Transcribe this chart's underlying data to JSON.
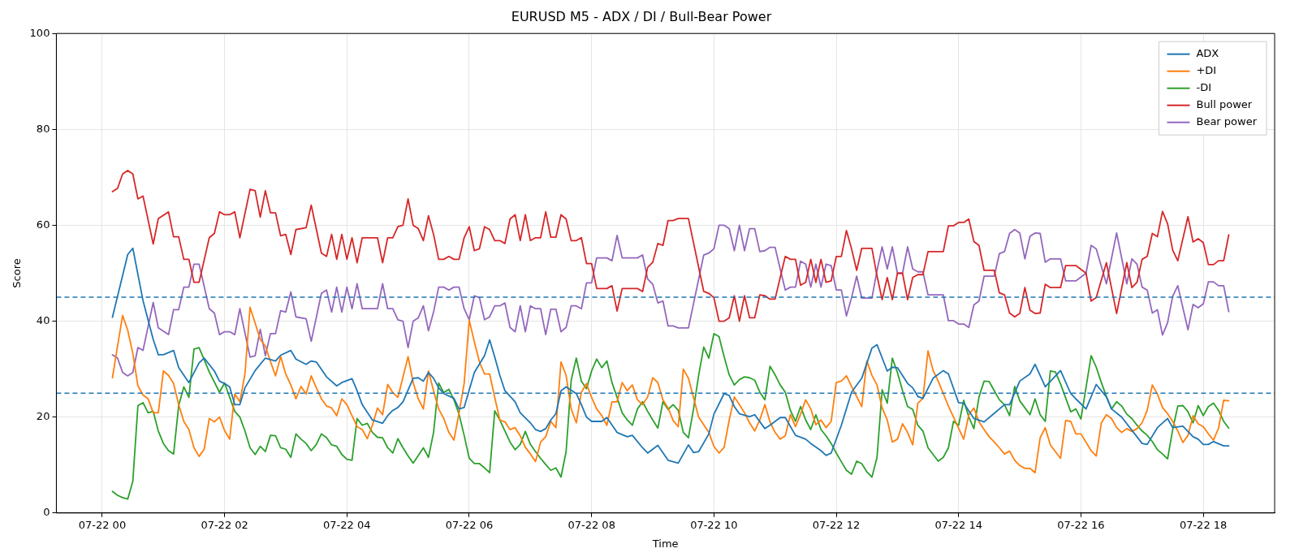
{
  "chart_data": {
    "type": "line",
    "title": "EURUSD M5 - ADX / DI / Bull-Bear Power",
    "xlabel": "Time",
    "ylabel": "Score",
    "xlim": [
      "--07-21T23:15",
      "--07-22T19:10"
    ],
    "ylim": [
      0,
      100
    ],
    "xticks": [
      {
        "value": "--07-22T00:00",
        "label": "07-22 00"
      },
      {
        "value": "--07-22T02:00",
        "label": "07-22 02"
      },
      {
        "value": "--07-22T04:00",
        "label": "07-22 04"
      },
      {
        "value": "--07-22T06:00",
        "label": "07-22 06"
      },
      {
        "value": "--07-22T08:00",
        "label": "07-22 08"
      },
      {
        "value": "--07-22T10:00",
        "label": "07-22 10"
      },
      {
        "value": "--07-22T12:00",
        "label": "07-22 12"
      },
      {
        "value": "--07-22T14:00",
        "label": "07-22 14"
      },
      {
        "value": "--07-22T16:00",
        "label": "07-22 16"
      },
      {
        "value": "--07-22T18:00",
        "label": "07-22 18"
      }
    ],
    "yticks": [
      0,
      20,
      40,
      60,
      80,
      100
    ],
    "grid": true,
    "legend": "top right",
    "marker": "none",
    "line_style": "solid",
    "ref_lines": [
      {
        "axis": "y",
        "value": 45,
        "color": "#1f77b4",
        "line_style": "dashed"
      },
      {
        "axis": "y",
        "value": 25,
        "color": "#1f77b4",
        "line_style": "dashed"
      }
    ],
    "x": [
      "--07-22T00:10",
      "--07-22T00:15",
      "--07-22T00:20",
      "--07-22T00:25",
      "--07-22T00:30",
      "--07-22T00:35",
      "--07-22T00:40",
      "--07-22T00:50",
      "--07-22T00:55",
      "--07-22T01:05",
      "--07-22T01:10",
      "--07-22T01:15",
      "--07-22T01:20",
      "--07-22T01:25",
      "--07-22T01:30",
      "--07-22T01:35",
      "--07-22T01:45",
      "--07-22T01:50",
      "--07-22T01:55",
      "--07-22T02:00",
      "--07-22T02:05",
      "--07-22T02:10",
      "--07-22T02:15",
      "--07-22T02:25",
      "--07-22T02:30",
      "--07-22T02:35",
      "--07-22T02:40",
      "--07-22T02:45",
      "--07-22T02:50",
      "--07-22T02:55",
      "--07-22T03:00",
      "--07-22T03:05",
      "--07-22T03:10",
      "--07-22T03:20",
      "--07-22T03:25",
      "--07-22T03:35",
      "--07-22T03:40",
      "--07-22T03:45",
      "--07-22T03:50",
      "--07-22T03:55",
      "--07-22T04:00",
      "--07-22T04:05",
      "--07-22T04:10",
      "--07-22T04:15",
      "--07-22T04:30",
      "--07-22T04:35",
      "--07-22T04:40",
      "--07-22T04:45",
      "--07-22T04:50",
      "--07-22T04:55",
      "--07-22T05:00",
      "--07-22T05:05",
      "--07-22T05:10",
      "--07-22T05:15",
      "--07-22T05:20",
      "--07-22T05:25",
      "--07-22T05:30",
      "--07-22T05:35",
      "--07-22T05:40",
      "--07-22T05:45",
      "--07-22T05:50",
      "--07-22T05:55",
      "--07-22T06:00",
      "--07-22T06:05",
      "--07-22T06:10",
      "--07-22T06:15",
      "--07-22T06:20",
      "--07-22T06:25",
      "--07-22T06:30",
      "--07-22T06:35",
      "--07-22T06:40",
      "--07-22T06:45",
      "--07-22T06:50",
      "--07-22T06:55",
      "--07-22T07:00",
      "--07-22T07:05",
      "--07-22T07:10",
      "--07-22T07:15",
      "--07-22T07:20",
      "--07-22T07:25",
      "--07-22T07:30",
      "--07-22T07:35",
      "--07-22T07:40",
      "--07-22T07:45",
      "--07-22T07:50",
      "--07-22T07:55",
      "--07-22T08:00",
      "--07-22T08:05",
      "--07-22T08:15",
      "--07-22T08:20",
      "--07-22T08:25",
      "--07-22T08:30",
      "--07-22T08:45",
      "--07-22T08:50",
      "--07-22T08:55",
      "--07-22T09:00",
      "--07-22T09:05",
      "--07-22T09:10",
      "--07-22T09:15",
      "--07-22T09:20",
      "--07-22T09:25",
      "--07-22T09:35",
      "--07-22T09:50",
      "--07-22T09:55",
      "--07-22T10:00",
      "--07-22T10:05",
      "--07-22T10:10",
      "--07-22T10:15",
      "--07-22T10:20",
      "--07-22T10:25",
      "--07-22T10:30",
      "--07-22T10:35",
      "--07-22T10:40",
      "--07-22T10:45",
      "--07-22T10:50",
      "--07-22T10:55",
      "--07-22T11:00",
      "--07-22T11:05",
      "--07-22T11:10",
      "--07-22T11:15",
      "--07-22T11:20",
      "--07-22T11:25",
      "--07-22T11:30",
      "--07-22T11:35",
      "--07-22T11:40",
      "--07-22T11:45",
      "--07-22T11:50",
      "--07-22T11:55",
      "--07-22T12:00",
      "--07-22T12:05",
      "--07-22T12:10",
      "--07-22T12:15",
      "--07-22T12:20",
      "--07-22T12:25",
      "--07-22T12:35",
      "--07-22T12:40",
      "--07-22T12:45",
      "--07-22T12:50",
      "--07-22T12:55",
      "--07-22T13:00",
      "--07-22T13:05",
      "--07-22T13:10",
      "--07-22T13:15",
      "--07-22T13:20",
      "--07-22T13:25",
      "--07-22T13:30",
      "--07-22T13:45",
      "--07-22T13:50",
      "--07-22T13:55",
      "--07-22T14:00",
      "--07-22T14:05",
      "--07-22T14:10",
      "--07-22T14:15",
      "--07-22T14:20",
      "--07-22T14:25",
      "--07-22T14:35",
      "--07-22T14:40",
      "--07-22T14:45",
      "--07-22T14:50",
      "--07-22T14:55",
      "--07-22T15:00",
      "--07-22T15:05",
      "--07-22T15:10",
      "--07-22T15:15",
      "--07-22T15:20",
      "--07-22T15:25",
      "--07-22T15:30",
      "--07-22T15:40",
      "--07-22T15:45",
      "--07-22T15:55",
      "--07-22T16:05",
      "--07-22T16:10",
      "--07-22T16:15",
      "--07-22T16:25",
      "--07-22T16:35",
      "--07-22T16:45",
      "--07-22T16:50",
      "--07-22T16:55",
      "--07-22T17:00",
      "--07-22T17:05",
      "--07-22T17:10",
      "--07-22T17:15",
      "--07-22T17:20",
      "--07-22T17:25",
      "--07-22T17:30",
      "--07-22T17:35",
      "--07-22T17:45",
      "--07-22T17:50",
      "--07-22T17:55",
      "--07-22T18:00",
      "--07-22T18:05",
      "--07-22T18:10",
      "--07-22T18:15",
      "--07-22T18:20",
      "--07-22T18:25"
    ],
    "series": [
      {
        "name": "ADX",
        "color": "#1f77b4",
        "x": [
          "--07-22T00:10",
          "--07-22T00:25",
          "--07-22T00:30",
          "--07-22T00:40",
          "--07-22T00:50",
          "--07-22T00:55",
          "--07-22T01:00",
          "--07-22T01:10",
          "--07-22T01:15",
          "--07-22T01:25",
          "--07-22T01:35",
          "--07-22T01:40",
          "--07-22T01:50",
          "--07-22T01:55",
          "--07-22T02:00",
          "--07-22T02:05",
          "--07-22T02:10",
          "--07-22T02:15",
          "--07-22T02:20",
          "--07-22T02:30",
          "--07-22T02:40",
          "--07-22T02:50",
          "--07-22T02:55",
          "--07-22T03:05",
          "--07-22T03:10",
          "--07-22T03:20",
          "--07-22T03:25",
          "--07-22T03:30",
          "--07-22T03:40",
          "--07-22T03:50",
          "--07-22T03:55",
          "--07-22T04:05",
          "--07-22T04:10",
          "--07-22T04:15",
          "--07-22T04:25",
          "--07-22T04:35",
          "--07-22T04:40",
          "--07-22T04:45",
          "--07-22T04:50",
          "--07-22T04:55",
          "--07-22T05:05",
          "--07-22T05:10",
          "--07-22T05:15",
          "--07-22T05:20",
          "--07-22T05:25",
          "--07-22T05:30",
          "--07-22T05:35",
          "--07-22T05:45",
          "--07-22T05:50",
          "--07-22T05:55",
          "--07-22T06:05",
          "--07-22T06:15",
          "--07-22T06:20",
          "--07-22T06:25",
          "--07-22T06:30",
          "--07-22T06:35",
          "--07-22T06:45",
          "--07-22T06:50",
          "--07-22T07:00",
          "--07-22T07:05",
          "--07-22T07:10",
          "--07-22T07:15",
          "--07-22T07:20",
          "--07-22T07:25",
          "--07-22T07:30",
          "--07-22T07:35",
          "--07-22T07:45",
          "--07-22T07:50",
          "--07-22T07:55",
          "--07-22T08:00",
          "--07-22T08:10",
          "--07-22T08:15",
          "--07-22T08:25",
          "--07-22T08:35",
          "--07-22T08:40",
          "--07-22T08:50",
          "--07-22T08:55",
          "--07-22T09:05",
          "--07-22T09:15",
          "--07-22T09:25",
          "--07-22T09:35",
          "--07-22T09:40",
          "--07-22T09:45",
          "--07-22T09:55",
          "--07-22T10:00",
          "--07-22T10:10",
          "--07-22T10:15",
          "--07-22T10:20",
          "--07-22T10:25",
          "--07-22T10:35",
          "--07-22T10:40",
          "--07-22T10:50",
          "--07-22T10:55",
          "--07-22T11:05",
          "--07-22T11:10",
          "--07-22T11:20",
          "--07-22T11:30",
          "--07-22T11:35",
          "--07-22T11:45",
          "--07-22T11:50",
          "--07-22T11:55",
          "--07-22T12:05",
          "--07-22T12:15",
          "--07-22T12:25",
          "--07-22T12:35",
          "--07-22T12:40",
          "--07-22T12:50",
          "--07-22T12:55",
          "--07-22T13:00",
          "--07-22T13:10",
          "--07-22T13:15",
          "--07-22T13:20",
          "--07-22T13:25",
          "--07-22T13:35",
          "--07-22T13:45",
          "--07-22T13:50",
          "--07-22T14:00",
          "--07-22T14:05",
          "--07-22T14:15",
          "--07-22T14:25",
          "--07-22T14:35",
          "--07-22T14:45",
          "--07-22T14:50",
          "--07-22T15:00",
          "--07-22T15:10",
          "--07-22T15:15",
          "--07-22T15:25",
          "--07-22T15:40",
          "--07-22T15:50",
          "--07-22T15:55",
          "--07-22T16:05",
          "--07-22T16:15",
          "--07-22T16:25",
          "--07-22T16:30",
          "--07-22T16:40",
          "--07-22T17:00",
          "--07-22T17:05",
          "--07-22T17:15",
          "--07-22T17:25",
          "--07-22T17:30",
          "--07-22T17:40",
          "--07-22T17:50",
          "--07-22T17:55",
          "--07-22T18:00",
          "--07-22T18:05",
          "--07-22T18:10",
          "--07-22T18:20",
          "--07-22T18:25"
        ],
        "values": [
          40.8,
          53.9,
          55.2,
          44.3,
          36.2,
          33.0,
          33.0,
          33.9,
          30.3,
          27.2,
          31.3,
          32.3,
          29.6,
          27.5,
          27.0,
          26.3,
          22.6,
          22.6,
          26.1,
          29.7,
          32.3,
          31.7,
          32.9,
          33.9,
          32.1,
          31.0,
          31.7,
          31.5,
          28.4,
          26.5,
          27.2,
          28.0,
          25.5,
          22.6,
          19.4,
          18.7,
          20.3,
          21.4,
          22.0,
          23.2,
          28.1,
          28.2,
          27.5,
          29.3,
          28.1,
          26.1,
          24.9,
          23.9,
          21.7,
          22.0,
          29.3,
          32.8,
          36.1,
          32.5,
          28.7,
          25.5,
          23.2,
          20.9,
          18.8,
          17.4,
          17.0,
          17.6,
          19.4,
          20.7,
          25.5,
          26.3,
          24.9,
          22.6,
          20.0,
          19.1,
          19.1,
          19.9,
          16.8,
          15.9,
          16.2,
          13.6,
          12.5,
          14.1,
          11.0,
          10.4,
          14.2,
          12.6,
          12.8,
          16.5,
          20.6,
          24.9,
          24.5,
          22.2,
          20.7,
          20.1,
          20.5,
          17.6,
          18.3,
          19.9,
          19.9,
          16.2,
          15.4,
          14.5,
          13.0,
          12.0,
          12.5,
          18.3,
          25.2,
          28.1,
          34.4,
          35.1,
          29.6,
          30.4,
          30.3,
          27.0,
          26.1,
          24.3,
          23.9,
          28.1,
          29.7,
          29.0,
          23.0,
          22.9,
          19.7,
          19.0,
          20.8,
          22.6,
          22.6,
          27.5,
          29.0,
          31.0,
          26.3,
          29.7,
          24.9,
          23.8,
          21.7,
          26.8,
          24.2,
          21.7,
          20.0,
          14.5,
          14.3,
          17.8,
          19.7,
          17.8,
          18.1,
          15.9,
          15.4,
          14.3,
          14.3,
          14.9,
          14.0,
          14.0
        ]
      },
      {
        "name": "+DI",
        "color": "#ff7f0e",
        "x": [
          "--07-22T00:10",
          "--07-22T00:15",
          "--07-22T00:20",
          "--07-22T00:25",
          "--07-22T00:30",
          "--07-22T00:35",
          "--07-22T00:40",
          "--07-22T00:45",
          "--07-22T00:50",
          "--07-22T00:55",
          "--07-22T01:00",
          "--07-22T01:05",
          "--07-22T01:10",
          "--07-22T01:15",
          "--07-22T01:20",
          "--07-22T01:25",
          "--07-22T01:30",
          "--07-22T01:35",
          "--07-22T01:40",
          "--07-22T01:45",
          "--07-22T01:50",
          "--07-22T01:55",
          "--07-22T02:00",
          "--07-22T02:05",
          "--07-22T02:10",
          "--07-22T02:15",
          "--07-22T02:20",
          "--07-22T02:25",
          "--07-22T02:30",
          "--07-22T02:35",
          "--07-22T02:40",
          "--07-22T02:45",
          "--07-22T02:50",
          "--07-22T02:55",
          "--07-22T03:00",
          "--07-22T03:05",
          "--07-22T03:10",
          "--07-22T03:15",
          "--07-22T03:20",
          "--07-22T03:25",
          "--07-22T03:30",
          "--07-22T03:35",
          "--07-22T03:40",
          "--07-22T03:45",
          "--07-22T03:50",
          "--07-22T03:55",
          "--07-22T04:00",
          "--07-22T04:05",
          "--07-22T04:10",
          "--07-22T04:15",
          "--07-22T04:20",
          "--07-22T04:25",
          "--07-22T04:30",
          "--07-22T04:35",
          "--07-22T04:40",
          "--07-22T04:45",
          "--07-22T04:50",
          "--07-22T05:00",
          "--07-22T05:05",
          "--07-22T05:10",
          "--07-22T05:15",
          "--07-22T05:20",
          "--07-22T05:25",
          "--07-22T05:30",
          "--07-22T05:35",
          "--07-22T05:40",
          "--07-22T05:45",
          "--07-22T05:50",
          "--07-22T05:55",
          "--07-22T06:00",
          "--07-22T06:05",
          "--07-22T06:10",
          "--07-22T06:15",
          "--07-22T06:20",
          "--07-22T06:25",
          "--07-22T06:30",
          "--07-22T06:35",
          "--07-22T06:40",
          "--07-22T06:45",
          "--07-22T06:50",
          "--07-22T06:55",
          "--07-22T07:00",
          "--07-22T07:05",
          "--07-22T07:10",
          "--07-22T07:15",
          "--07-22T07:20",
          "--07-22T07:25",
          "--07-22T07:30",
          "--07-22T07:35",
          "--07-22T07:40",
          "--07-22T07:45",
          "--07-22T07:50",
          "--07-22T07:55",
          "--07-22T08:00",
          "--07-22T08:05",
          "--07-22T08:10",
          "--07-22T08:15",
          "--07-22T08:20",
          "--07-22T08:25",
          "--07-22T08:30",
          "--07-22T08:35",
          "--07-22T08:40",
          "--07-22T08:45",
          "--07-22T08:50",
          "--07-22T08:55",
          "--07-22T09:00",
          "--07-22T09:05",
          "--07-22T09:10",
          "--07-22T09:15",
          "--07-22T09:20",
          "--07-22T09:25",
          "--07-22T09:30",
          "--07-22T09:35",
          "--07-22T09:45",
          "--07-22T09:55",
          "--07-22T10:00",
          "--07-22T10:05",
          "--07-22T10:10",
          "--07-22T10:15",
          "--07-22T10:20",
          "--07-22T10:25",
          "--07-22T10:30",
          "--07-22T10:35",
          "--07-22T10:40",
          "--07-22T10:45",
          "--07-22T10:50",
          "--07-22T10:55",
          "--07-22T11:00",
          "--07-22T11:05",
          "--07-22T11:10",
          "--07-22T11:15",
          "--07-22T11:20",
          "--07-22T11:25",
          "--07-22T11:30",
          "--07-22T11:35",
          "--07-22T11:40",
          "--07-22T11:45",
          "--07-22T11:50",
          "--07-22T11:55",
          "--07-22T12:00",
          "--07-22T12:05",
          "--07-22T12:10",
          "--07-22T12:15",
          "--07-22T12:20",
          "--07-22T12:25",
          "--07-22T12:30",
          "--07-22T12:35",
          "--07-22T12:40",
          "--07-22T12:45",
          "--07-22T12:50",
          "--07-22T12:55",
          "--07-22T13:00",
          "--07-22T13:05",
          "--07-22T13:10",
          "--07-22T13:15",
          "--07-22T13:20",
          "--07-22T13:25",
          "--07-22T13:30",
          "--07-22T13:35",
          "--07-22T13:40",
          "--07-22T13:45",
          "--07-22T13:50",
          "--07-22T13:55",
          "--07-22T14:00",
          "--07-22T14:05",
          "--07-22T14:10",
          "--07-22T14:15",
          "--07-22T14:20",
          "--07-22T14:25",
          "--07-22T14:30",
          "--07-22T14:35",
          "--07-22T14:40",
          "--07-22T14:45",
          "--07-22T14:50",
          "--07-22T14:55",
          "--07-22T15:00",
          "--07-22T15:05",
          "--07-22T15:10",
          "--07-22T15:15",
          "--07-22T15:20",
          "--07-22T15:25",
          "--07-22T15:30",
          "--07-22T15:40",
          "--07-22T15:45",
          "--07-22T15:50",
          "--07-22T15:55",
          "--07-22T16:00",
          "--07-22T16:10",
          "--07-22T16:15",
          "--07-22T16:20",
          "--07-22T16:25",
          "--07-22T16:30",
          "--07-22T16:35",
          "--07-22T16:40",
          "--07-22T16:45",
          "--07-22T16:50",
          "--07-22T16:55",
          "--07-22T17:00",
          "--07-22T17:05",
          "--07-22T17:10",
          "--07-22T17:15",
          "--07-22T17:20",
          "--07-22T17:25",
          "--07-22T17:30",
          "--07-22T17:35",
          "--07-22T17:40",
          "--07-22T17:45",
          "--07-22T17:50",
          "--07-22T17:55",
          "--07-22T18:00",
          "--07-22T18:05",
          "--07-22T18:10",
          "--07-22T18:15",
          "--07-22T18:20",
          "--07-22T18:25"
        ],
        "values": [
          28.2,
          34.8,
          41.2,
          38.1,
          33.3,
          26.5,
          24.6,
          23.8,
          20.9,
          20.9,
          29.6,
          28.7,
          27.0,
          22.6,
          19.1,
          17.4,
          13.6,
          11.8,
          13.3,
          19.7,
          19.0,
          20.0,
          17.2,
          15.4,
          24.8,
          23.2,
          29.0,
          42.9,
          39.6,
          36.2,
          34.8,
          31.6,
          28.6,
          32.6,
          29.0,
          26.7,
          23.8,
          26.4,
          24.8,
          28.6,
          26.1,
          23.8,
          22.3,
          21.9,
          20.3,
          23.8,
          22.6,
          20.3,
          18.0,
          17.4,
          15.5,
          18.3,
          21.9,
          20.5,
          26.8,
          25.1,
          24.1,
          32.6,
          27.2,
          23.8,
          21.7,
          29.6,
          25.5,
          21.7,
          19.7,
          16.8,
          15.2,
          20.9,
          27.0,
          40.2,
          35.7,
          31.5,
          29.0,
          29.0,
          24.1,
          19.4,
          19.0,
          17.4,
          17.8,
          16.1,
          13.7,
          12.3,
          10.7,
          14.8,
          15.9,
          19.1,
          17.8,
          31.5,
          28.7,
          21.7,
          18.8,
          25.2,
          27.0,
          24.1,
          21.7,
          20.3,
          18.3,
          23.2,
          23.2,
          27.2,
          25.5,
          26.7,
          23.6,
          22.6,
          24.2,
          28.2,
          27.2,
          23.6,
          21.9,
          19.3,
          18.0,
          30.0,
          28.1,
          20.0,
          16.8,
          13.9,
          12.5,
          13.7,
          19.4,
          24.2,
          22.6,
          20.9,
          18.8,
          17.1,
          19.4,
          22.6,
          19.0,
          16.8,
          15.4,
          16.1,
          20.5,
          18.0,
          20.6,
          23.6,
          21.7,
          18.4,
          19.4,
          17.8,
          19.1,
          27.2,
          27.5,
          28.6,
          26.4,
          24.3,
          22.2,
          31.7,
          28.7,
          26.7,
          21.9,
          19.4,
          14.8,
          15.4,
          18.6,
          16.8,
          14.2,
          22.9,
          23.9,
          33.8,
          29.7,
          27.5,
          24.9,
          22.3,
          20.0,
          17.7,
          15.4,
          20.5,
          21.9,
          19.0,
          17.4,
          15.9,
          14.8,
          13.6,
          12.3,
          12.9,
          11.0,
          9.9,
          9.3,
          9.3,
          8.4,
          15.7,
          17.8,
          14.2,
          11.4,
          19.3,
          19.1,
          16.5,
          16.5,
          13.0,
          11.9,
          18.8,
          20.5,
          19.7,
          17.8,
          16.8,
          17.6,
          17.0,
          17.6,
          18.8,
          21.4,
          26.7,
          24.8,
          22.0,
          20.7,
          19.1,
          17.1,
          14.7,
          16.2,
          20.3,
          18.6,
          18.0,
          16.5,
          15.2,
          17.7,
          23.5,
          23.4
        ]
      },
      {
        "name": "-DI",
        "color": "#2ca02c",
        "x": [
          "--07-22T00:10",
          "--07-22T00:15",
          "--07-22T00:20",
          "--07-22T00:25",
          "--07-22T00:30",
          "--07-22T00:35",
          "--07-22T00:40",
          "--07-22T00:45",
          "--07-22T00:50",
          "--07-22T00:55",
          "--07-22T01:00",
          "--07-22T01:05",
          "--07-22T01:10",
          "--07-22T01:15",
          "--07-22T01:20",
          "--07-22T01:25",
          "--07-22T01:30",
          "--07-22T01:35",
          "--07-22T01:45",
          "--07-22T01:55",
          "--07-22T02:00",
          "--07-22T02:10",
          "--07-22T02:15",
          "--07-22T02:20",
          "--07-22T02:25",
          "--07-22T02:30",
          "--07-22T02:35",
          "--07-22T02:40",
          "--07-22T02:45",
          "--07-22T02:50",
          "--07-22T02:55",
          "--07-22T03:00",
          "--07-22T03:05",
          "--07-22T03:10",
          "--07-22T03:15",
          "--07-22T03:20",
          "--07-22T03:25",
          "--07-22T03:30",
          "--07-22T03:35",
          "--07-22T03:40",
          "--07-22T03:45",
          "--07-22T03:50",
          "--07-22T03:55",
          "--07-22T04:00",
          "--07-22T04:05",
          "--07-22T04:10",
          "--07-22T04:15",
          "--07-22T04:20",
          "--07-22T04:25",
          "--07-22T04:30",
          "--07-22T04:35",
          "--07-22T04:40",
          "--07-22T04:45",
          "--07-22T04:50",
          "--07-22T04:55",
          "--07-22T05:00",
          "--07-22T05:05",
          "--07-22T05:10",
          "--07-22T05:15",
          "--07-22T05:20",
          "--07-22T05:25",
          "--07-22T05:30",
          "--07-22T05:35",
          "--07-22T05:40",
          "--07-22T05:45",
          "--07-22T05:50",
          "--07-22T05:55",
          "--07-22T06:00",
          "--07-22T06:05",
          "--07-22T06:10",
          "--07-22T06:15",
          "--07-22T06:20",
          "--07-22T06:25",
          "--07-22T06:30",
          "--07-22T06:35",
          "--07-22T06:40",
          "--07-22T06:45",
          "--07-22T06:50",
          "--07-22T06:55",
          "--07-22T07:00",
          "--07-22T07:05",
          "--07-22T07:10",
          "--07-22T07:15",
          "--07-22T07:20",
          "--07-22T07:25",
          "--07-22T07:30",
          "--07-22T07:35",
          "--07-22T07:40",
          "--07-22T07:45",
          "--07-22T07:50",
          "--07-22T07:55",
          "--07-22T08:00",
          "--07-22T08:05",
          "--07-22T08:10",
          "--07-22T08:15",
          "--07-22T08:20",
          "--07-22T08:25",
          "--07-22T08:30",
          "--07-22T08:35",
          "--07-22T08:40",
          "--07-22T08:45",
          "--07-22T08:50",
          "--07-22T08:55",
          "--07-22T09:00",
          "--07-22T09:05",
          "--07-22T09:10",
          "--07-22T09:15",
          "--07-22T09:20",
          "--07-22T09:25",
          "--07-22T09:30",
          "--07-22T09:35",
          "--07-22T09:40",
          "--07-22T09:45",
          "--07-22T09:50",
          "--07-22T09:55",
          "--07-22T10:00",
          "--07-22T10:05",
          "--07-22T10:10",
          "--07-22T10:15",
          "--07-22T10:20",
          "--07-22T10:25",
          "--07-22T10:30",
          "--07-22T10:35",
          "--07-22T10:40",
          "--07-22T10:45",
          "--07-22T10:50",
          "--07-22T10:55",
          "--07-22T11:00",
          "--07-22T11:05",
          "--07-22T11:10",
          "--07-22T11:15",
          "--07-22T11:20",
          "--07-22T11:25",
          "--07-22T11:30",
          "--07-22T11:35",
          "--07-22T11:40",
          "--07-22T11:45",
          "--07-22T11:50",
          "--07-22T11:55",
          "--07-22T12:00",
          "--07-22T12:05",
          "--07-22T12:10",
          "--07-22T12:15",
          "--07-22T12:20",
          "--07-22T12:25",
          "--07-22T12:30",
          "--07-22T12:35",
          "--07-22T12:40",
          "--07-22T12:45",
          "--07-22T12:50",
          "--07-22T12:55",
          "--07-22T13:00",
          "--07-22T13:05",
          "--07-22T13:10",
          "--07-22T13:15",
          "--07-22T13:20",
          "--07-22T13:25",
          "--07-22T13:30",
          "--07-22T13:35",
          "--07-22T13:40",
          "--07-22T13:45",
          "--07-22T13:50",
          "--07-22T13:55",
          "--07-22T14:00",
          "--07-22T14:05",
          "--07-22T14:10",
          "--07-22T14:15",
          "--07-22T14:20",
          "--07-22T14:25",
          "--07-22T14:30",
          "--07-22T14:35",
          "--07-22T14:40",
          "--07-22T14:45",
          "--07-22T14:50",
          "--07-22T14:55",
          "--07-22T15:00",
          "--07-22T15:10",
          "--07-22T15:15",
          "--07-22T15:20",
          "--07-22T15:25",
          "--07-22T15:30",
          "--07-22T15:35",
          "--07-22T15:40",
          "--07-22T15:50",
          "--07-22T15:55",
          "--07-22T16:00",
          "--07-22T16:10",
          "--07-22T16:15",
          "--07-22T16:20",
          "--07-22T16:25",
          "--07-22T16:30",
          "--07-22T16:35",
          "--07-22T16:40",
          "--07-22T16:45",
          "--07-22T16:50",
          "--07-22T16:55",
          "--07-22T17:00",
          "--07-22T17:05",
          "--07-22T17:10",
          "--07-22T17:15",
          "--07-22T17:20",
          "--07-22T17:25",
          "--07-22T17:30",
          "--07-22T17:35",
          "--07-22T17:40",
          "--07-22T17:45",
          "--07-22T17:50",
          "--07-22T17:55",
          "--07-22T18:00",
          "--07-22T18:05",
          "--07-22T18:10",
          "--07-22T18:15",
          "--07-22T18:20",
          "--07-22T18:25"
        ],
        "values": [
          4.5,
          3.7,
          3.2,
          2.9,
          6.6,
          22.4,
          23.0,
          20.9,
          21.2,
          17.1,
          14.5,
          13.0,
          12.3,
          22.4,
          26.3,
          24.1,
          34.2,
          34.5,
          29.4,
          25.2,
          27.1,
          21.2,
          20.0,
          17.1,
          13.6,
          12.2,
          13.9,
          12.8,
          16.2,
          16.1,
          13.6,
          13.3,
          11.6,
          16.5,
          15.4,
          14.5,
          13.0,
          14.3,
          16.5,
          15.7,
          14.2,
          13.9,
          12.2,
          11.2,
          11.0,
          19.7,
          18.3,
          18.7,
          16.8,
          15.8,
          15.7,
          13.6,
          12.5,
          15.5,
          13.6,
          11.9,
          10.4,
          12.0,
          13.6,
          11.6,
          16.8,
          27.1,
          25.1,
          25.8,
          23.6,
          20.6,
          16.2,
          11.4,
          10.3,
          10.3,
          9.4,
          8.4,
          21.3,
          19.4,
          17.1,
          14.8,
          13.2,
          14.3,
          17.0,
          14.3,
          12.8,
          11.4,
          10.1,
          8.9,
          9.4,
          7.5,
          12.8,
          27.7,
          32.3,
          27.5,
          25.9,
          29.6,
          32.1,
          30.3,
          31.7,
          27.2,
          24.1,
          20.9,
          19.4,
          18.3,
          21.7,
          23.2,
          21.2,
          19.4,
          17.7,
          23.2,
          21.6,
          22.6,
          21.4,
          16.8,
          15.7,
          21.7,
          28.7,
          34.6,
          32.3,
          37.4,
          36.8,
          32.6,
          28.8,
          26.7,
          27.8,
          28.4,
          28.2,
          27.7,
          25.2,
          23.6,
          30.6,
          28.8,
          26.7,
          25.2,
          21.4,
          19.1,
          22.2,
          19.4,
          17.4,
          20.5,
          17.4,
          16.1,
          14.5,
          12.5,
          10.7,
          8.9,
          8.1,
          10.8,
          10.3,
          8.6,
          7.5,
          11.6,
          25.7,
          22.9,
          32.3,
          29.3,
          25.5,
          22.2,
          21.6,
          18.3,
          17.1,
          13.6,
          12.2,
          10.8,
          11.6,
          13.6,
          19.1,
          18.3,
          23.5,
          20.0,
          17.6,
          24.2,
          27.5,
          27.4,
          25.5,
          23.6,
          22.6,
          20.3,
          26.4,
          23.4,
          20.5,
          23.8,
          20.5,
          19.1,
          29.6,
          29.4,
          26.9,
          21.1,
          21.7,
          19.6,
          32.8,
          30.4,
          27.2,
          24.3,
          21.7,
          23.2,
          22.3,
          20.6,
          19.7,
          18.3,
          17.1,
          16.2,
          14.9,
          13.2,
          12.3,
          11.3,
          17.4,
          22.3,
          22.4,
          21.1,
          18.8,
          22.4,
          20.3,
          22.2,
          22.9,
          21.4,
          19.1,
          17.7
        ]
      },
      {
        "name": "Bull power",
        "color": "#d62728",
        "values": [
          67.0,
          67.7,
          70.7,
          71.4,
          70.7,
          65.5,
          66.1,
          56.1,
          61.4,
          62.8,
          57.6,
          57.6,
          52.9,
          52.9,
          48.1,
          48.1,
          57.4,
          58.3,
          62.8,
          62.2,
          62.2,
          62.8,
          57.4,
          67.5,
          67.2,
          61.7,
          67.2,
          62.6,
          62.6,
          57.8,
          58.1,
          53.9,
          59.1,
          59.5,
          64.2,
          54.2,
          53.5,
          58.1,
          52.9,
          58.1,
          52.9,
          57.4,
          52.2,
          57.4,
          57.4,
          52.2,
          57.4,
          57.4,
          59.7,
          60.0,
          65.5,
          60.0,
          59.3,
          56.8,
          62.0,
          58.1,
          52.9,
          52.9,
          53.5,
          52.9,
          52.9,
          57.4,
          59.7,
          54.7,
          55.1,
          59.7,
          59.1,
          56.8,
          56.8,
          56.2,
          61.3,
          62.2,
          56.8,
          62.2,
          56.8,
          57.4,
          57.4,
          62.8,
          57.5,
          57.5,
          62.2,
          61.3,
          56.8,
          56.8,
          57.4,
          52.0,
          52.0,
          46.8,
          46.8,
          47.4,
          42.1,
          46.8,
          46.8,
          46.2,
          51.2,
          52.3,
          56.2,
          55.8,
          61.0,
          61.0,
          61.4,
          61.4,
          46.2,
          45.8,
          44.9,
          40.0,
          40.0,
          40.7,
          45.3,
          40.0,
          45.3,
          40.7,
          40.7,
          45.5,
          45.3,
          44.6,
          44.6,
          49.1,
          53.5,
          52.9,
          52.9,
          47.5,
          48.1,
          52.9,
          48.1,
          52.9,
          48.1,
          48.4,
          53.5,
          53.5,
          58.9,
          55.1,
          50.6,
          55.2,
          55.2,
          49.4,
          44.5,
          49.1,
          44.5,
          50.0,
          50.0,
          44.5,
          49.1,
          49.7,
          49.7,
          54.5,
          54.5,
          59.9,
          59.9,
          60.6,
          60.6,
          61.3,
          56.6,
          55.8,
          50.6,
          50.6,
          45.9,
          45.5,
          41.7,
          40.9,
          41.6,
          47.0,
          42.3,
          41.6,
          41.7,
          47.7,
          47.0,
          47.0,
          51.6,
          51.6,
          50.0,
          44.2,
          44.9,
          52.2,
          41.6,
          52.2,
          47.0,
          48.1,
          52.9,
          53.5,
          58.3,
          57.6,
          62.9,
          60.3,
          54.8,
          52.6,
          61.8,
          56.5,
          57.2,
          56.4,
          51.8,
          51.8,
          52.6,
          52.6,
          58.0
        ]
      },
      {
        "name": "Bear power",
        "color": "#9467bd",
        "values": [
          33.0,
          32.3,
          29.3,
          28.6,
          29.3,
          34.5,
          33.9,
          43.9,
          38.6,
          37.2,
          42.4,
          42.4,
          47.1,
          47.1,
          51.9,
          51.9,
          42.6,
          41.7,
          37.2,
          37.8,
          37.8,
          37.2,
          42.6,
          32.5,
          32.8,
          38.3,
          32.8,
          37.4,
          37.4,
          42.2,
          41.9,
          46.1,
          40.9,
          40.5,
          35.8,
          45.8,
          46.5,
          41.9,
          47.1,
          41.9,
          47.1,
          42.6,
          47.8,
          42.6,
          42.6,
          47.8,
          42.6,
          42.6,
          40.3,
          40.0,
          34.5,
          40.0,
          40.7,
          43.2,
          38.0,
          41.9,
          47.1,
          47.1,
          46.5,
          47.1,
          47.1,
          42.6,
          40.3,
          45.3,
          44.9,
          40.3,
          40.9,
          43.2,
          43.2,
          43.8,
          38.7,
          37.8,
          43.2,
          37.8,
          43.2,
          42.6,
          42.6,
          37.2,
          42.5,
          42.5,
          37.8,
          38.7,
          43.2,
          43.2,
          42.6,
          48.0,
          48.0,
          53.2,
          53.2,
          52.6,
          57.9,
          53.2,
          53.2,
          53.8,
          48.8,
          47.7,
          43.8,
          44.2,
          39.0,
          39.0,
          38.6,
          38.6,
          53.8,
          54.2,
          55.1,
          60.0,
          60.0,
          59.3,
          54.7,
          60.0,
          54.7,
          59.3,
          59.3,
          54.5,
          54.7,
          55.4,
          55.4,
          50.9,
          46.5,
          47.1,
          47.1,
          52.5,
          51.9,
          47.1,
          51.9,
          47.1,
          51.9,
          51.6,
          46.5,
          46.5,
          41.1,
          44.9,
          49.4,
          44.8,
          44.8,
          50.6,
          55.5,
          50.9,
          55.5,
          50.0,
          50.0,
          55.5,
          50.9,
          50.3,
          50.3,
          45.5,
          45.5,
          40.1,
          40.1,
          39.4,
          39.4,
          38.7,
          43.4,
          44.2,
          49.4,
          49.4,
          54.1,
          54.5,
          58.3,
          59.1,
          58.4,
          53.0,
          57.7,
          58.4,
          58.3,
          52.3,
          53.0,
          53.0,
          48.4,
          48.4,
          50.0,
          55.8,
          55.1,
          47.8,
          58.4,
          47.8,
          53.0,
          51.9,
          47.1,
          46.5,
          41.7,
          42.4,
          37.1,
          39.7,
          45.2,
          47.4,
          38.2,
          43.5,
          42.8,
          43.6,
          48.2,
          48.2,
          47.4,
          47.4,
          42.0
        ]
      }
    ]
  }
}
